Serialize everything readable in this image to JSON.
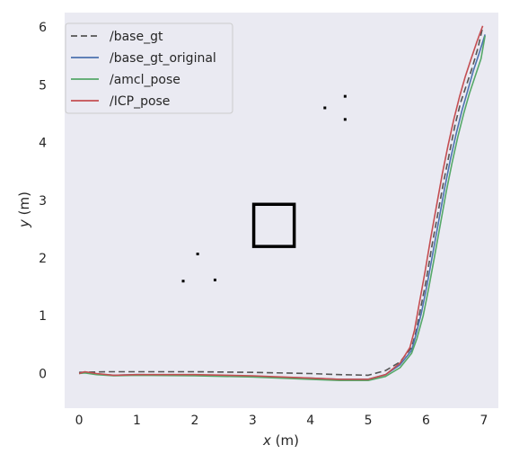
{
  "chart_data": {
    "type": "line",
    "xlabel_var": "x",
    "xlabel_unit": " (m)",
    "ylabel_var": "y",
    "ylabel_unit": " (m)",
    "xlim": [
      -0.25,
      7.25
    ],
    "ylim": [
      -0.6,
      6.25
    ],
    "xticks": [
      0,
      1,
      2,
      3,
      4,
      5,
      6,
      7
    ],
    "yticks": [
      0,
      1,
      2,
      3,
      4,
      5,
      6
    ],
    "grid": false,
    "background": "#eaeaf2",
    "legend_position": "top-left",
    "series": [
      {
        "name": "/base_gt",
        "color": "#555555",
        "dash": "7,4",
        "x": [
          0,
          0.5,
          1,
          2,
          3,
          4,
          4.5,
          5,
          5.3,
          5.55,
          5.75,
          5.82,
          5.9,
          6.0,
          6.1,
          6.2,
          6.3,
          6.4,
          6.5,
          6.6,
          6.7,
          6.8,
          6.9,
          6.98
        ],
        "y": [
          0.02,
          0.03,
          0.03,
          0.03,
          0.02,
          0.0,
          -0.02,
          -0.03,
          0.05,
          0.2,
          0.45,
          0.7,
          1.1,
          1.6,
          2.2,
          2.75,
          3.3,
          3.8,
          4.3,
          4.7,
          5.0,
          5.3,
          5.65,
          6.0
        ]
      },
      {
        "name": "/base_gt_original",
        "color": "#4c72b0",
        "dash": "",
        "x": [
          0,
          0.1,
          0.3,
          0.6,
          1,
          2,
          3,
          4,
          4.5,
          5,
          5.3,
          5.55,
          5.75,
          5.82,
          5.92,
          6.02,
          6.12,
          6.22,
          6.32,
          6.42,
          6.52,
          6.62,
          6.72,
          6.82,
          6.92,
          7.02
        ],
        "y": [
          0.0,
          0.02,
          -0.01,
          -0.03,
          -0.02,
          -0.03,
          -0.05,
          -0.08,
          -0.1,
          -0.1,
          -0.02,
          0.15,
          0.4,
          0.65,
          1.05,
          1.55,
          2.1,
          2.65,
          3.2,
          3.7,
          4.15,
          4.55,
          4.9,
          5.25,
          5.55,
          5.87
        ]
      },
      {
        "name": "/amcl_pose",
        "color": "#55a868",
        "dash": "",
        "x": [
          0,
          0.1,
          0.3,
          0.6,
          1,
          2,
          3,
          4,
          4.5,
          5,
          5.3,
          5.55,
          5.75,
          5.84,
          5.95,
          6.05,
          6.15,
          6.25,
          6.35,
          6.45,
          6.55,
          6.65,
          6.75,
          6.85,
          6.95,
          7.02
        ],
        "y": [
          0.0,
          0.01,
          -0.02,
          -0.04,
          -0.03,
          -0.04,
          -0.06,
          -0.1,
          -0.12,
          -0.12,
          -0.05,
          0.1,
          0.35,
          0.6,
          1.0,
          1.5,
          2.05,
          2.6,
          3.15,
          3.65,
          4.1,
          4.5,
          4.85,
          5.15,
          5.45,
          5.85
        ]
      },
      {
        "name": "/ICP_pose",
        "color": "#c44e52",
        "dash": "",
        "x": [
          0,
          0.1,
          0.3,
          0.6,
          1,
          2,
          3,
          4,
          4.5,
          5,
          5.3,
          5.55,
          5.72,
          5.8,
          5.88,
          5.98,
          6.08,
          6.18,
          6.28,
          6.38,
          6.48,
          6.58,
          6.68,
          6.78,
          6.88,
          6.98
        ],
        "y": [
          0.0,
          0.03,
          0.0,
          -0.03,
          -0.02,
          -0.02,
          -0.04,
          -0.08,
          -0.1,
          -0.1,
          -0.02,
          0.18,
          0.45,
          0.75,
          1.2,
          1.75,
          2.35,
          2.9,
          3.45,
          3.95,
          4.4,
          4.8,
          5.15,
          5.45,
          5.75,
          6.02
        ]
      }
    ],
    "map_obstacles": [
      {
        "shape": "square",
        "x": [
          3.02,
          3.72
        ],
        "y": [
          2.2,
          2.93
        ]
      },
      {
        "shape": "dot",
        "x": 4.25,
        "y": 4.6
      },
      {
        "shape": "dot",
        "x": 4.6,
        "y": 4.8
      },
      {
        "shape": "dot",
        "x": 4.6,
        "y": 4.4
      },
      {
        "shape": "dot",
        "x": 2.05,
        "y": 2.07
      },
      {
        "shape": "dot",
        "x": 1.8,
        "y": 1.6
      },
      {
        "shape": "dot",
        "x": 2.35,
        "y": 1.62
      }
    ]
  }
}
